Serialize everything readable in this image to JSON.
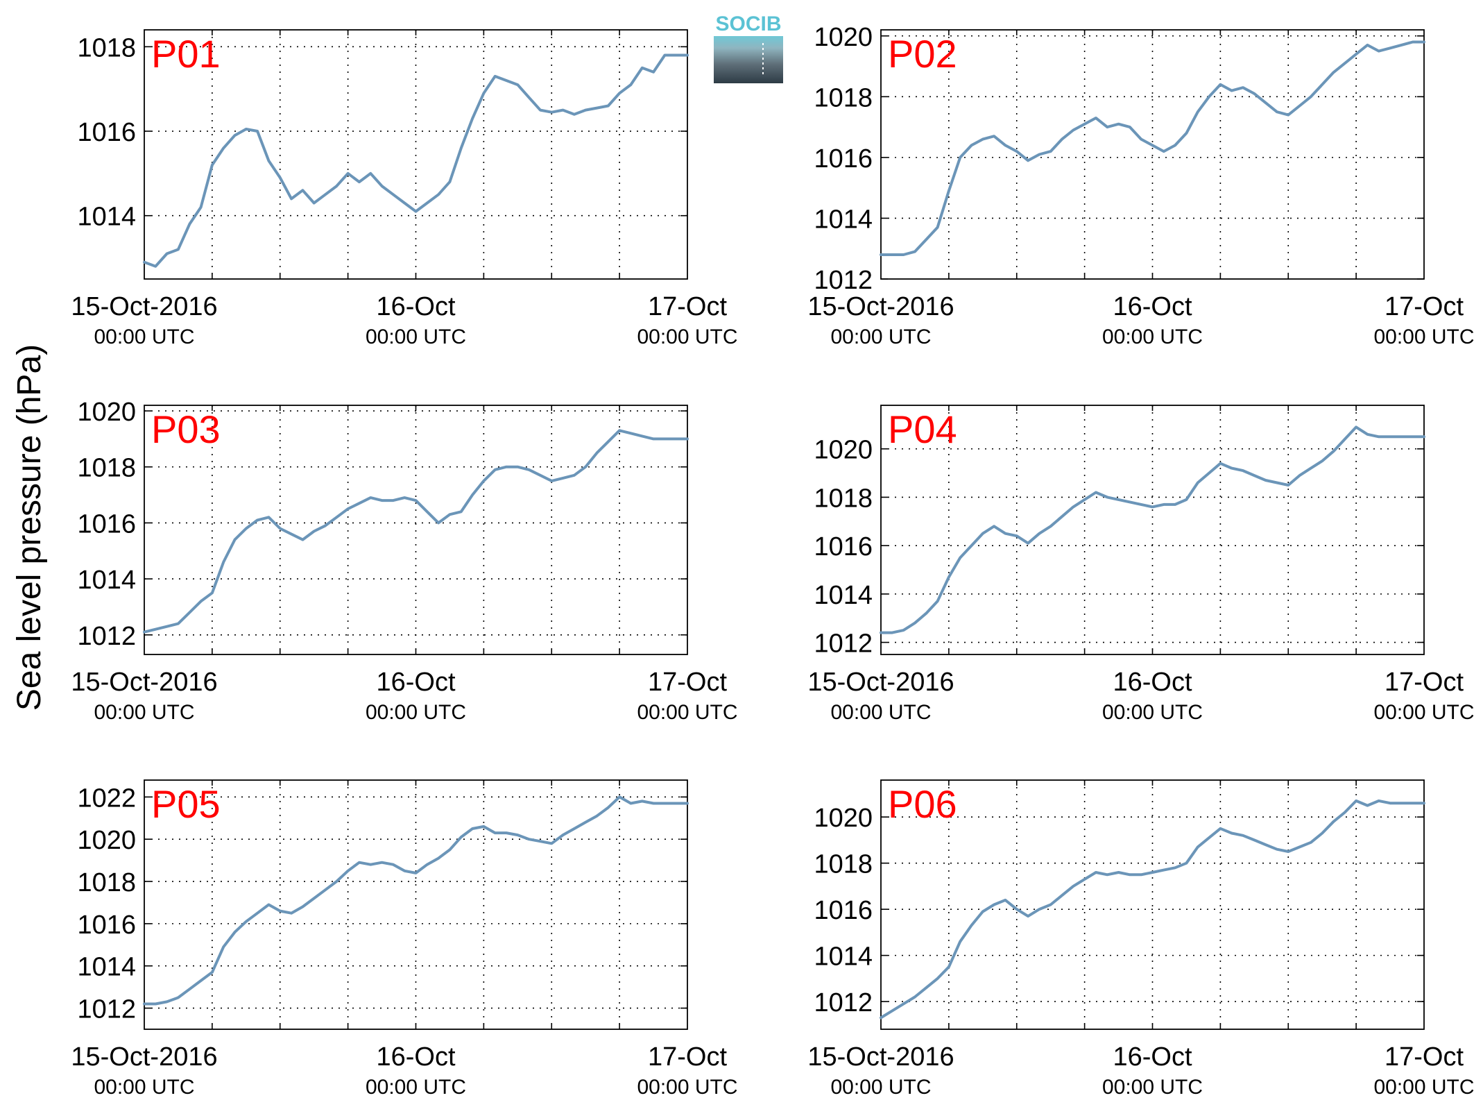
{
  "figure": {
    "ylabel": "Sea level pressure (hPa)",
    "logo_text": "SOCIB",
    "line_color": "#6b95b8",
    "panel_label_color": "#ff0000"
  },
  "chart_data": [
    {
      "type": "line",
      "panel": "P01",
      "xlabel_ticks": [
        {
          "x": 0,
          "line1": "15-Oct-2016",
          "line2": "00:00 UTC"
        },
        {
          "x": 24,
          "line1": "16-Oct",
          "line2": "00:00 UTC"
        },
        {
          "x": 48,
          "line1": "17-Oct",
          "line2": "00:00 UTC"
        }
      ],
      "x_unit": "hours since 15-Oct-2016 00:00 UTC",
      "xlim": [
        0,
        48
      ],
      "ylim": [
        1012.5,
        1018.4
      ],
      "yticks": [
        1014,
        1016,
        1018
      ],
      "grid": true,
      "series": [
        {
          "x": [
            0,
            1,
            2,
            3,
            4,
            5,
            6,
            7,
            8,
            9,
            10,
            11,
            12,
            13,
            14,
            15,
            16,
            17,
            18,
            19,
            20,
            21,
            22,
            23,
            24,
            25,
            26,
            27,
            28,
            29,
            30,
            31,
            32,
            33,
            34,
            35,
            36,
            37,
            38,
            39,
            40,
            41,
            42,
            43,
            44,
            45,
            46,
            47,
            48
          ],
          "values": [
            1012.9,
            1012.8,
            1013.1,
            1013.2,
            1013.8,
            1014.2,
            1015.2,
            1015.6,
            1015.9,
            1016.05,
            1016.0,
            1015.3,
            1014.9,
            1014.4,
            1014.6,
            1014.3,
            1014.5,
            1014.7,
            1015.0,
            1014.8,
            1015.0,
            1014.7,
            1014.5,
            1014.3,
            1014.1,
            1014.3,
            1014.5,
            1014.8,
            1015.6,
            1016.3,
            1016.9,
            1017.3,
            1017.2,
            1017.1,
            1016.8,
            1016.5,
            1016.45,
            1016.5,
            1016.4,
            1016.5,
            1016.55,
            1016.6,
            1016.9,
            1017.1,
            1017.5,
            1017.4,
            1017.8,
            1017.8,
            1017.8
          ]
        }
      ]
    },
    {
      "type": "line",
      "panel": "P02",
      "xlabel_ticks": [
        {
          "x": 0,
          "line1": "15-Oct-2016",
          "line2": "00:00 UTC"
        },
        {
          "x": 24,
          "line1": "16-Oct",
          "line2": "00:00 UTC"
        },
        {
          "x": 48,
          "line1": "17-Oct",
          "line2": "00:00 UTC"
        }
      ],
      "x_unit": "hours since 15-Oct-2016 00:00 UTC",
      "xlim": [
        0,
        48
      ],
      "ylim": [
        1012,
        1020.2
      ],
      "yticks": [
        1012,
        1014,
        1016,
        1018,
        1020
      ],
      "grid": true,
      "series": [
        {
          "x": [
            0,
            1,
            2,
            3,
            4,
            5,
            6,
            7,
            8,
            9,
            10,
            11,
            12,
            13,
            14,
            15,
            16,
            17,
            18,
            19,
            20,
            21,
            22,
            23,
            24,
            25,
            26,
            27,
            28,
            29,
            30,
            31,
            32,
            33,
            34,
            35,
            36,
            37,
            38,
            39,
            40,
            41,
            42,
            43,
            44,
            45,
            46,
            47,
            48
          ],
          "values": [
            1012.8,
            1012.8,
            1012.8,
            1012.9,
            1013.3,
            1013.7,
            1014.9,
            1016.0,
            1016.4,
            1016.6,
            1016.7,
            1016.4,
            1016.2,
            1015.9,
            1016.1,
            1016.2,
            1016.6,
            1016.9,
            1017.1,
            1017.3,
            1017.0,
            1017.1,
            1017.0,
            1016.6,
            1016.4,
            1016.2,
            1016.4,
            1016.8,
            1017.5,
            1018.0,
            1018.4,
            1018.2,
            1018.3,
            1018.1,
            1017.8,
            1017.5,
            1017.4,
            1017.7,
            1018.0,
            1018.4,
            1018.8,
            1019.1,
            1019.4,
            1019.7,
            1019.5,
            1019.6,
            1019.7,
            1019.8,
            1019.8
          ]
        }
      ]
    },
    {
      "type": "line",
      "panel": "P03",
      "xlabel_ticks": [
        {
          "x": 0,
          "line1": "15-Oct-2016",
          "line2": "00:00 UTC"
        },
        {
          "x": 24,
          "line1": "16-Oct",
          "line2": "00:00 UTC"
        },
        {
          "x": 48,
          "line1": "17-Oct",
          "line2": "00:00 UTC"
        }
      ],
      "x_unit": "hours since 15-Oct-2016 00:00 UTC",
      "xlim": [
        0,
        48
      ],
      "ylim": [
        1011.3,
        1020.2
      ],
      "yticks": [
        1012,
        1014,
        1016,
        1018,
        1020
      ],
      "grid": true,
      "series": [
        {
          "x": [
            0,
            1,
            2,
            3,
            4,
            5,
            6,
            7,
            8,
            9,
            10,
            11,
            12,
            13,
            14,
            15,
            16,
            17,
            18,
            19,
            20,
            21,
            22,
            23,
            24,
            25,
            26,
            27,
            28,
            29,
            30,
            31,
            32,
            33,
            34,
            35,
            36,
            37,
            38,
            39,
            40,
            41,
            42,
            43,
            44,
            45,
            46,
            47,
            48
          ],
          "values": [
            1012.1,
            1012.2,
            1012.3,
            1012.4,
            1012.8,
            1013.2,
            1013.5,
            1014.6,
            1015.4,
            1015.8,
            1016.1,
            1016.2,
            1015.8,
            1015.6,
            1015.4,
            1015.7,
            1015.9,
            1016.2,
            1016.5,
            1016.7,
            1016.9,
            1016.8,
            1016.8,
            1016.9,
            1016.8,
            1016.4,
            1016.0,
            1016.3,
            1016.4,
            1017.0,
            1017.5,
            1017.9,
            1018.0,
            1018.0,
            1017.9,
            1017.7,
            1017.5,
            1017.6,
            1017.7,
            1018.0,
            1018.5,
            1018.9,
            1019.3,
            1019.2,
            1019.1,
            1019.0,
            1019.0,
            1019.0,
            1019.0
          ]
        }
      ]
    },
    {
      "type": "line",
      "panel": "P04",
      "xlabel_ticks": [
        {
          "x": 0,
          "line1": "15-Oct-2016",
          "line2": "00:00 UTC"
        },
        {
          "x": 24,
          "line1": "16-Oct",
          "line2": "00:00 UTC"
        },
        {
          "x": 48,
          "line1": "17-Oct",
          "line2": "00:00 UTC"
        }
      ],
      "x_unit": "hours since 15-Oct-2016 00:00 UTC",
      "xlim": [
        0,
        48
      ],
      "ylim": [
        1011.5,
        1021.8
      ],
      "yticks": [
        1012,
        1014,
        1016,
        1018,
        1020
      ],
      "grid": true,
      "series": [
        {
          "x": [
            0,
            1,
            2,
            3,
            4,
            5,
            6,
            7,
            8,
            9,
            10,
            11,
            12,
            13,
            14,
            15,
            16,
            17,
            18,
            19,
            20,
            21,
            22,
            23,
            24,
            25,
            26,
            27,
            28,
            29,
            30,
            31,
            32,
            33,
            34,
            35,
            36,
            37,
            38,
            39,
            40,
            41,
            42,
            43,
            44,
            45,
            46,
            47,
            48
          ],
          "values": [
            1012.4,
            1012.4,
            1012.5,
            1012.8,
            1013.2,
            1013.7,
            1014.7,
            1015.5,
            1016.0,
            1016.5,
            1016.8,
            1016.5,
            1016.4,
            1016.1,
            1016.5,
            1016.8,
            1017.2,
            1017.6,
            1017.9,
            1018.2,
            1018.0,
            1017.9,
            1017.8,
            1017.7,
            1017.6,
            1017.7,
            1017.7,
            1017.9,
            1018.6,
            1019.0,
            1019.4,
            1019.2,
            1019.1,
            1018.9,
            1018.7,
            1018.6,
            1018.5,
            1018.9,
            1019.2,
            1019.5,
            1019.9,
            1020.4,
            1020.9,
            1020.6,
            1020.5,
            1020.5,
            1020.5,
            1020.5,
            1020.5
          ]
        }
      ]
    },
    {
      "type": "line",
      "panel": "P05",
      "xlabel_ticks": [
        {
          "x": 0,
          "line1": "15-Oct-2016",
          "line2": "00:00 UTC"
        },
        {
          "x": 24,
          "line1": "16-Oct",
          "line2": "00:00 UTC"
        },
        {
          "x": 48,
          "line1": "17-Oct",
          "line2": "00:00 UTC"
        }
      ],
      "x_unit": "hours since 15-Oct-2016 00:00 UTC",
      "xlim": [
        0,
        48
      ],
      "ylim": [
        1011.0,
        1022.8
      ],
      "yticks": [
        1012,
        1014,
        1016,
        1018,
        1020,
        1022
      ],
      "grid": true,
      "series": [
        {
          "x": [
            0,
            1,
            2,
            3,
            4,
            5,
            6,
            7,
            8,
            9,
            10,
            11,
            12,
            13,
            14,
            15,
            16,
            17,
            18,
            19,
            20,
            21,
            22,
            23,
            24,
            25,
            26,
            27,
            28,
            29,
            30,
            31,
            32,
            33,
            34,
            35,
            36,
            37,
            38,
            39,
            40,
            41,
            42,
            43,
            44,
            45,
            46,
            47,
            48
          ],
          "values": [
            1012.2,
            1012.2,
            1012.3,
            1012.5,
            1012.9,
            1013.3,
            1013.7,
            1014.9,
            1015.6,
            1016.1,
            1016.5,
            1016.9,
            1016.6,
            1016.5,
            1016.8,
            1017.2,
            1017.6,
            1018.0,
            1018.5,
            1018.9,
            1018.8,
            1018.9,
            1018.8,
            1018.5,
            1018.4,
            1018.8,
            1019.1,
            1019.5,
            1020.1,
            1020.5,
            1020.6,
            1020.3,
            1020.3,
            1020.2,
            1020.0,
            1019.9,
            1019.8,
            1020.2,
            1020.5,
            1020.8,
            1021.1,
            1021.5,
            1022.0,
            1021.7,
            1021.8,
            1021.7,
            1021.7,
            1021.7,
            1021.7
          ]
        }
      ]
    },
    {
      "type": "line",
      "panel": "P06",
      "xlabel_ticks": [
        {
          "x": 0,
          "line1": "15-Oct-2016",
          "line2": "00:00 UTC"
        },
        {
          "x": 24,
          "line1": "16-Oct",
          "line2": "00:00 UTC"
        },
        {
          "x": 48,
          "line1": "17-Oct",
          "line2": "00:00 UTC"
        }
      ],
      "x_unit": "hours since 15-Oct-2016 00:00 UTC",
      "xlim": [
        0,
        48
      ],
      "ylim": [
        1010.8,
        1021.6
      ],
      "yticks": [
        1012,
        1014,
        1016,
        1018,
        1020
      ],
      "grid": true,
      "series": [
        {
          "x": [
            0,
            1,
            2,
            3,
            4,
            5,
            6,
            7,
            8,
            9,
            10,
            11,
            12,
            13,
            14,
            15,
            16,
            17,
            18,
            19,
            20,
            21,
            22,
            23,
            24,
            25,
            26,
            27,
            28,
            29,
            30,
            31,
            32,
            33,
            34,
            35,
            36,
            37,
            38,
            39,
            40,
            41,
            42,
            43,
            44,
            45,
            46,
            47,
            48
          ],
          "values": [
            1011.3,
            1011.6,
            1011.9,
            1012.2,
            1012.6,
            1013.0,
            1013.5,
            1014.6,
            1015.3,
            1015.9,
            1016.2,
            1016.4,
            1016.0,
            1015.7,
            1016.0,
            1016.2,
            1016.6,
            1017.0,
            1017.3,
            1017.6,
            1017.5,
            1017.6,
            1017.5,
            1017.5,
            1017.6,
            1017.7,
            1017.8,
            1018.0,
            1018.7,
            1019.1,
            1019.5,
            1019.3,
            1019.2,
            1019.0,
            1018.8,
            1018.6,
            1018.5,
            1018.7,
            1018.9,
            1019.3,
            1019.8,
            1020.2,
            1020.7,
            1020.5,
            1020.7,
            1020.6,
            1020.6,
            1020.6,
            1020.6
          ]
        }
      ]
    }
  ]
}
